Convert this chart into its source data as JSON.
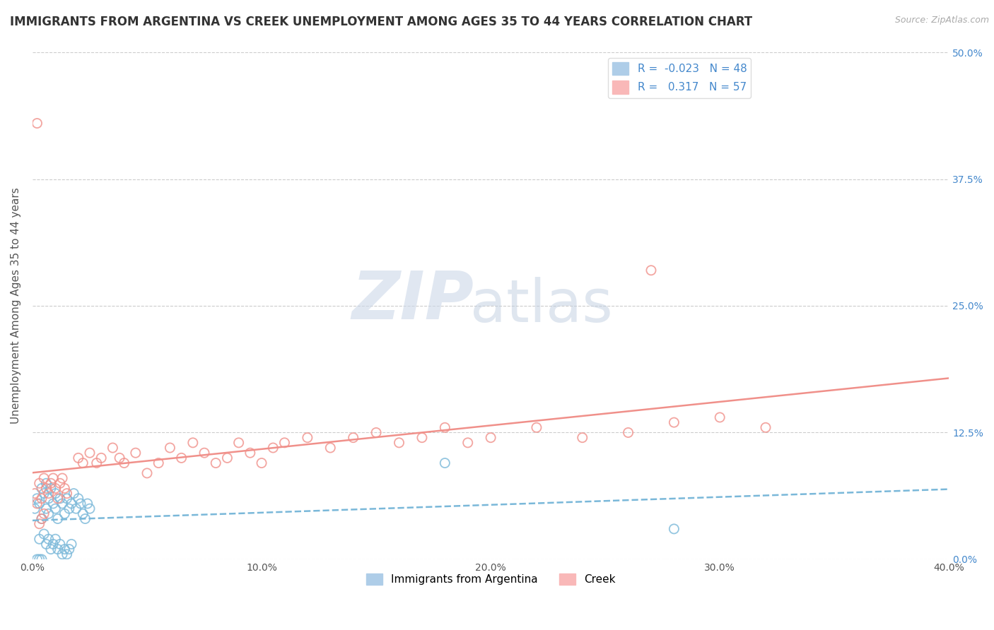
{
  "title": "IMMIGRANTS FROM ARGENTINA VS CREEK UNEMPLOYMENT AMONG AGES 35 TO 44 YEARS CORRELATION CHART",
  "source_text": "Source: ZipAtlas.com",
  "ylabel": "Unemployment Among Ages 35 to 44 years",
  "xlim": [
    0.0,
    0.4
  ],
  "ylim": [
    0.0,
    0.5
  ],
  "xticks": [
    0.0,
    0.1,
    0.2,
    0.3,
    0.4
  ],
  "xticklabels": [
    "0.0%",
    "10.0%",
    "20.0%",
    "30.0%",
    "40.0%"
  ],
  "yticks": [
    0.0,
    0.125,
    0.25,
    0.375,
    0.5
  ],
  "yticklabels": [
    "0.0%",
    "12.5%",
    "25.0%",
    "37.5%",
    "50.0%"
  ],
  "series1_color": "#7ab8d9",
  "series2_color": "#f0908a",
  "series1_label": "Immigrants from Argentina",
  "series2_label": "Creek",
  "series1_R": -0.023,
  "series1_N": 48,
  "series2_R": 0.317,
  "series2_N": 57,
  "background_color": "#ffffff",
  "grid_color": "#cccccc",
  "title_fontsize": 12,
  "axis_label_fontsize": 11,
  "tick_fontsize": 10,
  "series1_scatter": [
    [
      0.001,
      0.05
    ],
    [
      0.002,
      0.06
    ],
    [
      0.003,
      0.055
    ],
    [
      0.004,
      0.07
    ],
    [
      0.004,
      0.04
    ],
    [
      0.005,
      0.065
    ],
    [
      0.006,
      0.05
    ],
    [
      0.006,
      0.075
    ],
    [
      0.007,
      0.06
    ],
    [
      0.007,
      0.045
    ],
    [
      0.008,
      0.07
    ],
    [
      0.009,
      0.055
    ],
    [
      0.01,
      0.05
    ],
    [
      0.01,
      0.065
    ],
    [
      0.011,
      0.04
    ],
    [
      0.012,
      0.06
    ],
    [
      0.013,
      0.055
    ],
    [
      0.014,
      0.045
    ],
    [
      0.015,
      0.06
    ],
    [
      0.016,
      0.05
    ],
    [
      0.017,
      0.055
    ],
    [
      0.018,
      0.065
    ],
    [
      0.019,
      0.05
    ],
    [
      0.02,
      0.06
    ],
    [
      0.021,
      0.055
    ],
    [
      0.022,
      0.045
    ],
    [
      0.023,
      0.04
    ],
    [
      0.024,
      0.055
    ],
    [
      0.025,
      0.05
    ],
    [
      0.003,
      0.02
    ],
    [
      0.005,
      0.025
    ],
    [
      0.006,
      0.015
    ],
    [
      0.007,
      0.02
    ],
    [
      0.008,
      0.01
    ],
    [
      0.009,
      0.015
    ],
    [
      0.01,
      0.02
    ],
    [
      0.011,
      0.01
    ],
    [
      0.012,
      0.015
    ],
    [
      0.013,
      0.005
    ],
    [
      0.014,
      0.01
    ],
    [
      0.015,
      0.005
    ],
    [
      0.016,
      0.01
    ],
    [
      0.017,
      0.015
    ],
    [
      0.18,
      0.095
    ],
    [
      0.28,
      0.03
    ],
    [
      0.002,
      0.0
    ],
    [
      0.003,
      0.0
    ],
    [
      0.004,
      0.0
    ]
  ],
  "series2_scatter": [
    [
      0.002,
      0.43
    ],
    [
      0.27,
      0.285
    ],
    [
      0.001,
      0.065
    ],
    [
      0.002,
      0.055
    ],
    [
      0.003,
      0.075
    ],
    [
      0.004,
      0.06
    ],
    [
      0.005,
      0.08
    ],
    [
      0.006,
      0.07
    ],
    [
      0.007,
      0.065
    ],
    [
      0.008,
      0.075
    ],
    [
      0.009,
      0.08
    ],
    [
      0.01,
      0.07
    ],
    [
      0.011,
      0.06
    ],
    [
      0.012,
      0.075
    ],
    [
      0.013,
      0.08
    ],
    [
      0.014,
      0.07
    ],
    [
      0.015,
      0.065
    ],
    [
      0.02,
      0.1
    ],
    [
      0.022,
      0.095
    ],
    [
      0.025,
      0.105
    ],
    [
      0.028,
      0.095
    ],
    [
      0.03,
      0.1
    ],
    [
      0.035,
      0.11
    ],
    [
      0.038,
      0.1
    ],
    [
      0.04,
      0.095
    ],
    [
      0.045,
      0.105
    ],
    [
      0.05,
      0.085
    ],
    [
      0.055,
      0.095
    ],
    [
      0.06,
      0.11
    ],
    [
      0.065,
      0.1
    ],
    [
      0.07,
      0.115
    ],
    [
      0.075,
      0.105
    ],
    [
      0.08,
      0.095
    ],
    [
      0.085,
      0.1
    ],
    [
      0.09,
      0.115
    ],
    [
      0.095,
      0.105
    ],
    [
      0.1,
      0.095
    ],
    [
      0.105,
      0.11
    ],
    [
      0.11,
      0.115
    ],
    [
      0.12,
      0.12
    ],
    [
      0.13,
      0.11
    ],
    [
      0.14,
      0.12
    ],
    [
      0.15,
      0.125
    ],
    [
      0.16,
      0.115
    ],
    [
      0.17,
      0.12
    ],
    [
      0.18,
      0.13
    ],
    [
      0.19,
      0.115
    ],
    [
      0.2,
      0.12
    ],
    [
      0.22,
      0.13
    ],
    [
      0.24,
      0.12
    ],
    [
      0.26,
      0.125
    ],
    [
      0.28,
      0.135
    ],
    [
      0.3,
      0.14
    ],
    [
      0.32,
      0.13
    ],
    [
      0.003,
      0.035
    ],
    [
      0.004,
      0.04
    ],
    [
      0.005,
      0.045
    ]
  ]
}
